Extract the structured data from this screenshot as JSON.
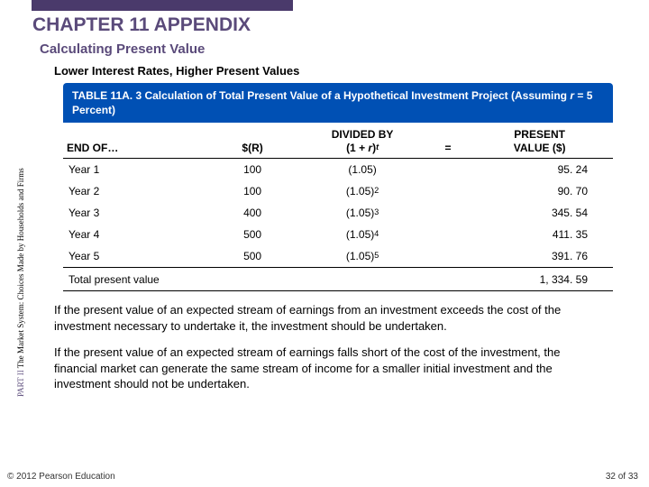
{
  "chapter_title": "CHAPTER 11 APPENDIX",
  "section_title": "Calculating Present Value",
  "subsection_title": "Lower Interest Rates, Higher Present Values",
  "table": {
    "caption_prefix": "TABLE 11A. 3 ",
    "caption_main": "Calculation of Total Present Value of a Hypothetical Investment Project (Assuming ",
    "caption_r": "r",
    "caption_tail": " = 5 Percent)",
    "col_end_of": "END OF…",
    "col_r": "$(R)",
    "col_div_line1": "DIVIDED BY",
    "col_div_line2a": "(1 + ",
    "col_div_line2b": "r",
    "col_div_line2c": ")",
    "col_div_line2d": "t",
    "col_eq": "=",
    "col_pv1": "PRESENT",
    "col_pv2": "VALUE ($)",
    "rows": [
      {
        "year": "Year 1",
        "r": "100",
        "div_base": "(1.05)",
        "div_exp": "",
        "pv": "95. 24"
      },
      {
        "year": "Year 2",
        "r": "100",
        "div_base": "(1.05)",
        "div_exp": "2",
        "pv": "90. 70"
      },
      {
        "year": "Year 3",
        "r": "400",
        "div_base": "(1.05)",
        "div_exp": "3",
        "pv": "345. 54"
      },
      {
        "year": "Year 4",
        "r": "500",
        "div_base": "(1.05)",
        "div_exp": "4",
        "pv": "411. 35"
      },
      {
        "year": "Year 5",
        "r": "500",
        "div_base": "(1.05)",
        "div_exp": "5",
        "pv": "391. 76"
      }
    ],
    "total_label": "Total present value",
    "total_value": "1, 334. 59"
  },
  "body_para1": "If the present value of an expected stream of earnings from an investment exceeds the cost of the investment necessary to undertake it, the investment should be undertaken.",
  "body_para2": "If the present value of an expected stream of earnings falls short of the cost of the investment, the financial market can generate the same stream of income for a smaller initial investment and the investment should not be undertaken.",
  "sidebar_part": "PART II ",
  "sidebar_rest": "The Market System: Choices Made by Households and Firms",
  "footer_left": "© 2012 Pearson Education",
  "footer_right": "32 of 33",
  "colors": {
    "accent_purple": "#5a4a7a",
    "table_header_bg": "#0050b4"
  }
}
